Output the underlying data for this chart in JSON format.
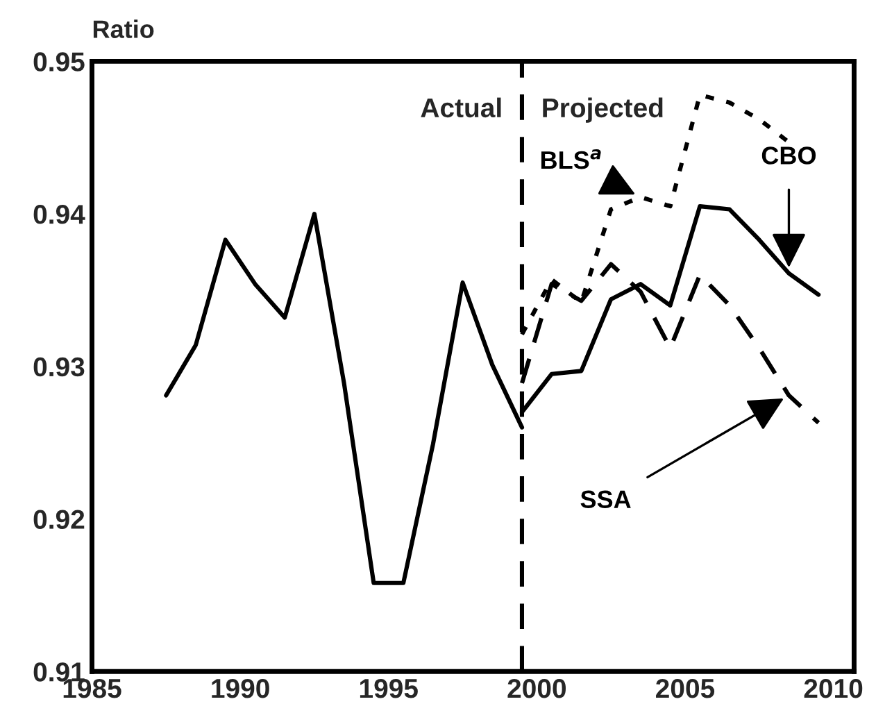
{
  "chart_data": {
    "type": "line",
    "ylabel": "Ratio",
    "xlim": [
      1985,
      2010.7
    ],
    "xticks": [
      1985,
      1990,
      1995,
      2000,
      2005,
      2010
    ],
    "ylim": [
      0.91,
      0.95
    ],
    "yticks": [
      {
        "value": 0.91,
        "label": "0.91"
      },
      {
        "value": 0.92,
        "label": "0.92"
      },
      {
        "value": 0.93,
        "label": "0.93"
      },
      {
        "value": 0.94,
        "label": "0.94"
      },
      {
        "value": 0.95,
        "label": "0.95"
      }
    ],
    "grid": false,
    "marker": "none",
    "series": [
      {
        "color": "#000000",
        "line_style": "solid",
        "x": [
          1987.5,
          1988.5,
          1989.5,
          1990.5,
          1991.5,
          1992.5,
          1993.5,
          1994.5,
          1995.5,
          1996.5,
          1997.5,
          1998.5,
          1999.5
        ],
        "values": [
          0.9281,
          0.9314,
          0.9383,
          0.9354,
          0.9332,
          0.94,
          0.9289,
          0.9158,
          0.9158,
          0.9249,
          0.9355,
          0.9301,
          0.926
        ]
      },
      {
        "name": "CBO",
        "color": "#000000",
        "line_style": "solid",
        "x": [
          1999.5,
          2000.5,
          2001.5,
          2002.5,
          2003.5,
          2004.5,
          2005.5,
          2006.5,
          2007.5,
          2008.5,
          2009.5
        ],
        "values": [
          0.927,
          0.9295,
          0.9297,
          0.9344,
          0.9354,
          0.934,
          0.9405,
          0.9403,
          0.9383,
          0.9361,
          0.9347
        ]
      },
      {
        "name": "BLS$^{a}$",
        "color": "#000000",
        "line_style": "dotted",
        "x": [
          1999.5,
          2000.5,
          2001.5,
          2002.5,
          2003.5,
          2004.5,
          2005.5,
          2006.5,
          2007.5,
          2008.5
        ],
        "values": [
          0.9321,
          0.9357,
          0.9342,
          0.9403,
          0.9411,
          0.9405,
          0.9478,
          0.9473,
          0.9462,
          0.9447
        ]
      },
      {
        "name": "SSA",
        "color": "#000000",
        "line_style": "dashed",
        "x": [
          1999.5,
          2000.5,
          2001.5,
          2002.5,
          2003.5,
          2004.5,
          2005.5,
          2006.5,
          2007.5,
          2008.5,
          2009.5
        ],
        "values": [
          0.9289,
          0.9354,
          0.9343,
          0.9367,
          0.9349,
          0.9312,
          0.936,
          0.934,
          0.9312,
          0.9281,
          0.9263
        ]
      }
    ],
    "ref_lines": [
      {
        "axis": "x",
        "value": 1999.5,
        "color": "#000000",
        "line_style": "dashed"
      }
    ],
    "annotations": [
      "Actual",
      "Projected"
    ]
  }
}
